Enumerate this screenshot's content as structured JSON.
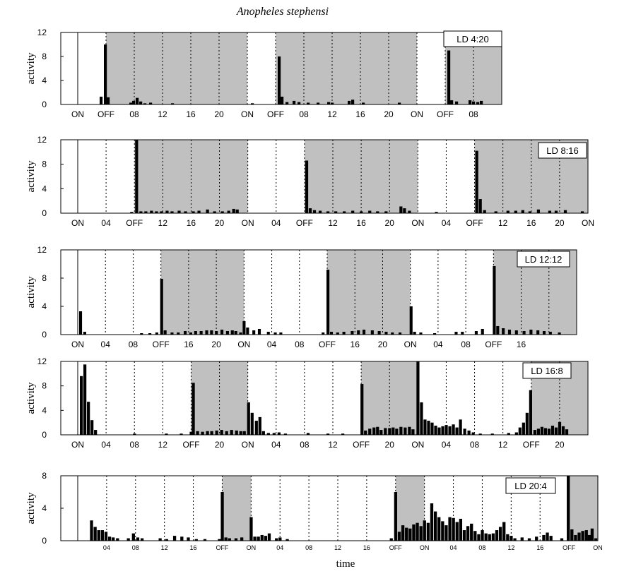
{
  "title": "Anopheles stephensi",
  "xlabel": "time",
  "chart_data": [
    {
      "type": "bar",
      "label": "LD 4:20",
      "ylabel": "activity",
      "ylim": [
        0,
        12
      ],
      "yticks": [
        0,
        4,
        8,
        12
      ],
      "x_range_h": [
        0,
        60
      ],
      "tick_spacing_h": 4,
      "dark": [
        [
          4,
          24
        ],
        [
          28,
          48
        ],
        [
          52,
          60
        ]
      ],
      "tick_labels": [
        "ON",
        "OFF",
        "08",
        "12",
        "16",
        "20",
        "ON",
        "OFF",
        "08",
        "12",
        "16",
        "20",
        "ON",
        "OFF",
        "08"
      ],
      "bars": [
        [
          3.1,
          1.3
        ],
        [
          3.7,
          10.0
        ],
        [
          4.1,
          1.2
        ],
        [
          7.3,
          0.3
        ],
        [
          7.7,
          0.6
        ],
        [
          8.2,
          1.1
        ],
        [
          8.7,
          0.5
        ],
        [
          9.3,
          0.2
        ],
        [
          10.1,
          0.3
        ],
        [
          13.2,
          0.2
        ],
        [
          24.5,
          0.2
        ],
        [
          28.3,
          8.0
        ],
        [
          28.7,
          1.3
        ],
        [
          29.4,
          0.4
        ],
        [
          30.4,
          0.6
        ],
        [
          31.1,
          0.4
        ],
        [
          32.4,
          0.3
        ],
        [
          33.8,
          0.3
        ],
        [
          35.3,
          0.4
        ],
        [
          35.8,
          0.3
        ],
        [
          38.2,
          0.6
        ],
        [
          38.7,
          0.8
        ],
        [
          40.2,
          0.3
        ],
        [
          45.3,
          0.3
        ],
        [
          52.3,
          9.0
        ],
        [
          52.7,
          0.7
        ],
        [
          53.4,
          0.5
        ],
        [
          55.3,
          0.7
        ],
        [
          55.8,
          0.5
        ],
        [
          56.4,
          0.4
        ],
        [
          56.9,
          0.6
        ]
      ]
    },
    {
      "type": "bar",
      "label": "LD 8:16",
      "ylabel": "activity",
      "ylim": [
        0,
        12
      ],
      "yticks": [
        0,
        4,
        8,
        12
      ],
      "x_range_h": [
        0,
        72
      ],
      "tick_spacing_h": 4,
      "dark": [
        [
          8,
          24
        ],
        [
          32,
          48
        ],
        [
          56,
          72
        ]
      ],
      "tick_labels": [
        "ON",
        "04",
        "OFF",
        "12",
        "16",
        "20",
        "ON",
        "04",
        "OFF",
        "12",
        "16",
        "20",
        "ON",
        "04",
        "OFF",
        "12",
        "16",
        "20",
        "ON"
      ],
      "bars": [
        [
          7.4,
          0.2
        ],
        [
          8.1,
          12.0
        ],
        [
          8.7,
          0.3
        ],
        [
          9.4,
          0.3
        ],
        [
          10.2,
          0.4
        ],
        [
          10.9,
          0.3
        ],
        [
          11.6,
          0.3
        ],
        [
          12.4,
          0.4
        ],
        [
          13.1,
          0.3
        ],
        [
          14.1,
          0.4
        ],
        [
          15.0,
          0.3
        ],
        [
          16.1,
          0.3
        ],
        [
          16.9,
          0.4
        ],
        [
          18.1,
          0.6
        ],
        [
          19.1,
          0.3
        ],
        [
          20.2,
          0.3
        ],
        [
          21.1,
          0.4
        ],
        [
          21.8,
          0.7
        ],
        [
          22.3,
          0.6
        ],
        [
          32.1,
          8.6
        ],
        [
          32.6,
          0.8
        ],
        [
          33.2,
          0.5
        ],
        [
          34.0,
          0.4
        ],
        [
          35.1,
          0.3
        ],
        [
          36.2,
          0.3
        ],
        [
          37.4,
          0.3
        ],
        [
          38.6,
          0.4
        ],
        [
          39.8,
          0.3
        ],
        [
          41.0,
          0.4
        ],
        [
          42.1,
          0.3
        ],
        [
          43.3,
          0.3
        ],
        [
          45.4,
          1.1
        ],
        [
          45.9,
          0.8
        ],
        [
          46.6,
          0.4
        ],
        [
          50.4,
          0.2
        ],
        [
          56.1,
          10.2
        ],
        [
          56.6,
          2.3
        ],
        [
          57.2,
          0.5
        ],
        [
          58.8,
          0.3
        ],
        [
          60.5,
          0.4
        ],
        [
          61.6,
          0.4
        ],
        [
          62.6,
          0.5
        ],
        [
          63.6,
          0.3
        ],
        [
          64.8,
          0.6
        ],
        [
          66.4,
          0.4
        ],
        [
          67.3,
          0.4
        ],
        [
          68.6,
          0.5
        ],
        [
          71.0,
          0.3
        ]
      ]
    },
    {
      "type": "bar",
      "label": "LD 12:12",
      "ylabel": "activity",
      "ylim": [
        0,
        12
      ],
      "yticks": [
        0,
        4,
        8,
        12
      ],
      "x_range_h": [
        0,
        72
      ],
      "tick_spacing_h": 4,
      "dark": [
        [
          12,
          24
        ],
        [
          36,
          48
        ],
        [
          60,
          72
        ]
      ],
      "tick_labels": [
        "ON",
        "04",
        "08",
        "OFF",
        "16",
        "20",
        "ON",
        "04",
        "08",
        "OFF",
        "16",
        "20",
        "ON",
        "04",
        "08",
        "OFF",
        "16"
      ],
      "bars": [
        [
          0.2,
          3.3
        ],
        [
          0.8,
          0.4
        ],
        [
          9.0,
          0.2
        ],
        [
          10.2,
          0.2
        ],
        [
          11.2,
          0.3
        ],
        [
          11.9,
          7.9
        ],
        [
          12.4,
          0.6
        ],
        [
          13.4,
          0.3
        ],
        [
          14.3,
          0.3
        ],
        [
          15.3,
          0.5
        ],
        [
          16.1,
          0.3
        ],
        [
          16.8,
          0.5
        ],
        [
          17.6,
          0.5
        ],
        [
          18.4,
          0.6
        ],
        [
          19.1,
          0.6
        ],
        [
          19.8,
          0.5
        ],
        [
          20.6,
          0.7
        ],
        [
          21.4,
          0.5
        ],
        [
          22.1,
          0.6
        ],
        [
          22.6,
          0.5
        ],
        [
          23.3,
          0.3
        ],
        [
          23.8,
          1.9
        ],
        [
          24.3,
          1.0
        ],
        [
          25.2,
          0.6
        ],
        [
          26.0,
          0.8
        ],
        [
          27.3,
          0.4
        ],
        [
          28.3,
          0.3
        ],
        [
          29.1,
          0.3
        ],
        [
          35.2,
          0.3
        ],
        [
          35.9,
          9.2
        ],
        [
          36.4,
          0.4
        ],
        [
          37.3,
          0.3
        ],
        [
          38.2,
          0.4
        ],
        [
          39.4,
          0.5
        ],
        [
          40.3,
          0.6
        ],
        [
          41.1,
          0.7
        ],
        [
          42.3,
          0.6
        ],
        [
          43.3,
          0.5
        ],
        [
          44.3,
          0.4
        ],
        [
          45.2,
          0.3
        ],
        [
          46.3,
          0.3
        ],
        [
          47.9,
          4.0
        ],
        [
          48.4,
          0.4
        ],
        [
          49.3,
          0.3
        ],
        [
          51.3,
          0.2
        ],
        [
          54.4,
          0.4
        ],
        [
          55.3,
          0.4
        ],
        [
          57.3,
          0.5
        ],
        [
          58.2,
          0.8
        ],
        [
          59.9,
          9.7
        ],
        [
          60.4,
          1.2
        ],
        [
          61.2,
          0.9
        ],
        [
          62.1,
          0.7
        ],
        [
          63.1,
          0.6
        ],
        [
          64.2,
          0.5
        ],
        [
          65.2,
          0.7
        ],
        [
          66.2,
          0.6
        ],
        [
          67.1,
          0.5
        ],
        [
          68.0,
          0.4
        ],
        [
          69.3,
          0.3
        ]
      ]
    },
    {
      "type": "bar",
      "label": "LD 16:8",
      "ylabel": "activity",
      "ylim": [
        0,
        12
      ],
      "yticks": [
        0,
        4,
        8,
        12
      ],
      "x_range_h": [
        0,
        72
      ],
      "tick_spacing_h": 4,
      "dark": [
        [
          16,
          24
        ],
        [
          40,
          48
        ],
        [
          64,
          72
        ]
      ],
      "tick_labels": [
        "ON",
        "04",
        "08",
        "12",
        "OFF",
        "20",
        "ON",
        "04",
        "08",
        "12",
        "OFF",
        "20",
        "ON",
        "04",
        "08",
        "12",
        "OFF",
        "20"
      ],
      "bars": [
        [
          0.3,
          9.6
        ],
        [
          0.8,
          11.5
        ],
        [
          1.3,
          5.4
        ],
        [
          1.8,
          2.4
        ],
        [
          2.3,
          0.8
        ],
        [
          7.8,
          0.2
        ],
        [
          12.3,
          0.2
        ],
        [
          14.4,
          0.2
        ],
        [
          15.8,
          0.5
        ],
        [
          16.1,
          8.5
        ],
        [
          16.7,
          0.6
        ],
        [
          17.4,
          0.5
        ],
        [
          18.1,
          0.6
        ],
        [
          18.7,
          0.6
        ],
        [
          19.4,
          0.7
        ],
        [
          20.1,
          0.8
        ],
        [
          20.8,
          0.6
        ],
        [
          21.5,
          0.8
        ],
        [
          22.2,
          0.7
        ],
        [
          22.8,
          0.6
        ],
        [
          23.3,
          0.6
        ],
        [
          23.9,
          5.3
        ],
        [
          24.4,
          3.6
        ],
        [
          25.0,
          2.3
        ],
        [
          25.5,
          2.9
        ],
        [
          26.0,
          0.6
        ],
        [
          26.7,
          0.3
        ],
        [
          27.5,
          0.3
        ],
        [
          28.2,
          0.4
        ],
        [
          29.1,
          0.2
        ],
        [
          32.3,
          0.3
        ],
        [
          35.1,
          0.2
        ],
        [
          37.2,
          0.2
        ],
        [
          39.9,
          8.3
        ],
        [
          40.4,
          0.7
        ],
        [
          41.0,
          1.0
        ],
        [
          41.6,
          1.2
        ],
        [
          42.1,
          1.3
        ],
        [
          42.6,
          0.8
        ],
        [
          43.2,
          1.1
        ],
        [
          43.8,
          1.1
        ],
        [
          44.3,
          1.2
        ],
        [
          44.8,
          1.0
        ],
        [
          45.4,
          1.3
        ],
        [
          46.0,
          1.2
        ],
        [
          46.6,
          1.3
        ],
        [
          47.1,
          0.9
        ],
        [
          47.8,
          12.0
        ],
        [
          48.3,
          5.3
        ],
        [
          48.8,
          2.5
        ],
        [
          49.3,
          2.3
        ],
        [
          49.8,
          2.0
        ],
        [
          50.3,
          1.5
        ],
        [
          50.8,
          1.2
        ],
        [
          51.3,
          1.4
        ],
        [
          51.8,
          1.6
        ],
        [
          52.3,
          1.4
        ],
        [
          52.8,
          1.7
        ],
        [
          53.3,
          1.2
        ],
        [
          53.8,
          2.5
        ],
        [
          54.4,
          1.0
        ],
        [
          55.0,
          0.7
        ],
        [
          55.6,
          0.4
        ],
        [
          56.6,
          0.2
        ],
        [
          58.3,
          0.2
        ],
        [
          60.6,
          0.3
        ],
        [
          61.7,
          0.4
        ],
        [
          62.2,
          1.2
        ],
        [
          62.7,
          2.0
        ],
        [
          63.2,
          3.6
        ],
        [
          63.7,
          7.3
        ],
        [
          64.3,
          0.8
        ],
        [
          64.8,
          1.0
        ],
        [
          65.3,
          1.3
        ],
        [
          65.8,
          1.1
        ],
        [
          66.3,
          1.0
        ],
        [
          66.8,
          1.5
        ],
        [
          67.3,
          1.2
        ],
        [
          67.8,
          2.1
        ],
        [
          68.3,
          1.4
        ],
        [
          68.8,
          0.9
        ]
      ]
    },
    {
      "type": "bar",
      "label": "LD 20:4",
      "ylabel": "activity",
      "ylim": [
        0,
        8
      ],
      "yticks": [
        0,
        4,
        8
      ],
      "x_range_h": [
        0,
        72
      ],
      "tick_spacing_h": 4,
      "dark": [
        [
          20,
          24
        ],
        [
          44,
          48
        ],
        [
          68,
          72
        ]
      ],
      "tick_labels": [
        "04",
        "08",
        "12",
        "16",
        "OFF",
        "ON",
        "04",
        "08",
        "12",
        "16",
        "OFF",
        "ON",
        "04",
        "08",
        "12",
        "16",
        "OFF",
        "ON"
      ],
      "bars": [
        [
          1.7,
          2.5
        ],
        [
          2.2,
          1.7
        ],
        [
          2.7,
          1.3
        ],
        [
          3.2,
          1.3
        ],
        [
          3.7,
          1.1
        ],
        [
          4.2,
          0.5
        ],
        [
          4.7,
          0.4
        ],
        [
          5.3,
          0.3
        ],
        [
          6.8,
          0.3
        ],
        [
          7.5,
          0.9
        ],
        [
          8.1,
          0.4
        ],
        [
          8.7,
          0.3
        ],
        [
          11.2,
          0.3
        ],
        [
          12.1,
          0.2
        ],
        [
          13.2,
          0.6
        ],
        [
          14.2,
          0.5
        ],
        [
          15.1,
          0.4
        ],
        [
          16.2,
          0.2
        ],
        [
          17.4,
          0.2
        ],
        [
          19.4,
          0.2
        ],
        [
          19.8,
          6.0
        ],
        [
          20.3,
          0.4
        ],
        [
          20.8,
          0.3
        ],
        [
          21.7,
          0.3
        ],
        [
          22.5,
          0.4
        ],
        [
          23.8,
          2.9
        ],
        [
          24.3,
          0.5
        ],
        [
          24.8,
          0.5
        ],
        [
          25.3,
          0.7
        ],
        [
          25.8,
          0.6
        ],
        [
          26.3,
          0.9
        ],
        [
          27.3,
          0.3
        ],
        [
          27.8,
          0.4
        ],
        [
          28.8,
          0.2
        ],
        [
          43.2,
          0.3
        ],
        [
          43.8,
          6.0
        ],
        [
          44.3,
          1.1
        ],
        [
          44.8,
          1.9
        ],
        [
          45.3,
          1.6
        ],
        [
          45.8,
          1.5
        ],
        [
          46.3,
          2.0
        ],
        [
          46.8,
          2.2
        ],
        [
          47.3,
          1.8
        ],
        [
          47.8,
          2.5
        ],
        [
          48.3,
          2.2
        ],
        [
          48.8,
          4.6
        ],
        [
          49.3,
          3.6
        ],
        [
          49.8,
          2.9
        ],
        [
          50.3,
          2.4
        ],
        [
          50.8,
          1.9
        ],
        [
          51.3,
          2.9
        ],
        [
          51.8,
          2.8
        ],
        [
          52.3,
          2.3
        ],
        [
          52.8,
          2.7
        ],
        [
          53.3,
          1.3
        ],
        [
          53.8,
          1.8
        ],
        [
          54.3,
          2.1
        ],
        [
          54.8,
          1.2
        ],
        [
          55.3,
          0.8
        ],
        [
          55.8,
          1.3
        ],
        [
          56.3,
          0.9
        ],
        [
          56.8,
          0.8
        ],
        [
          57.3,
          0.9
        ],
        [
          57.8,
          1.3
        ],
        [
          58.3,
          1.7
        ],
        [
          58.8,
          2.3
        ],
        [
          59.3,
          0.8
        ],
        [
          59.8,
          0.6
        ],
        [
          60.3,
          0.3
        ],
        [
          61.3,
          0.4
        ],
        [
          62.3,
          0.3
        ],
        [
          63.3,
          0.5
        ],
        [
          64.3,
          0.7
        ],
        [
          64.8,
          1.0
        ],
        [
          65.3,
          0.6
        ],
        [
          66.8,
          0.3
        ],
        [
          67.7,
          8.0
        ],
        [
          68.2,
          1.4
        ],
        [
          68.7,
          0.7
        ],
        [
          69.2,
          1.0
        ],
        [
          69.7,
          1.2
        ],
        [
          70.2,
          1.3
        ],
        [
          70.6,
          0.7
        ],
        [
          71.0,
          1.5
        ],
        [
          71.5,
          0.3
        ]
      ]
    }
  ]
}
